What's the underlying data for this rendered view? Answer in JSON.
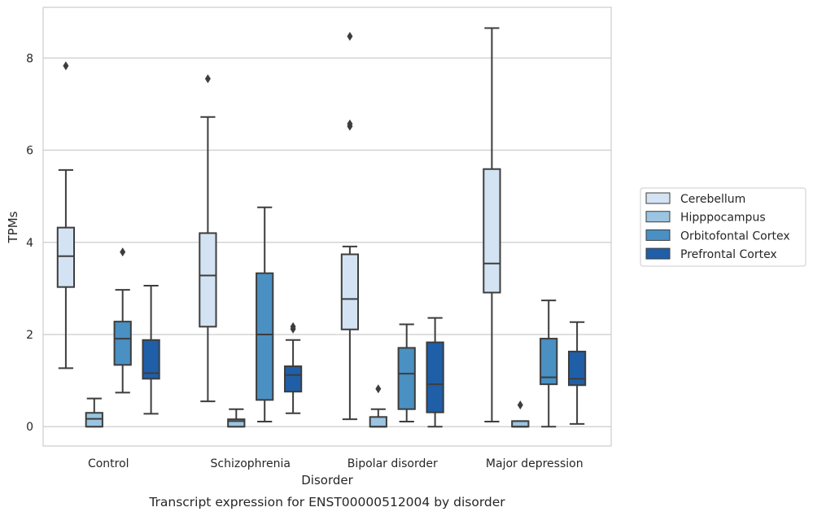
{
  "chart_data": {
    "type": "box",
    "caption": "Transcript expression for ENST00000512004 by disorder",
    "xlabel": "Disorder",
    "ylabel": "TPMs",
    "ylim": [
      -0.42,
      9.1
    ],
    "yticks": [
      0,
      2,
      4,
      6,
      8
    ],
    "grid": "horizontal",
    "legend_position": "right",
    "categories": [
      "Control",
      "Schizophrenia",
      "Bipolar disorder",
      "Major depression"
    ],
    "series": [
      {
        "name": "Cerebellum",
        "color": "#d3e3f3",
        "boxes": [
          {
            "whislo": 1.27,
            "q1": 3.03,
            "med": 3.7,
            "q3": 4.32,
            "whishi": 5.57,
            "fliers": [
              7.83
            ]
          },
          {
            "whislo": 0.55,
            "q1": 2.17,
            "med": 3.28,
            "q3": 4.2,
            "whishi": 6.72,
            "fliers": [
              7.55
            ]
          },
          {
            "whislo": 0.16,
            "q1": 2.11,
            "med": 2.77,
            "q3": 3.74,
            "whishi": 3.91,
            "fliers": [
              6.52,
              6.57,
              8.47
            ]
          },
          {
            "whislo": 0.11,
            "q1": 2.91,
            "med": 3.54,
            "q3": 5.59,
            "whishi": 8.65,
            "fliers": []
          }
        ]
      },
      {
        "name": "Hipppocampus",
        "color": "#9ac4df",
        "boxes": [
          {
            "whislo": 0.0,
            "q1": 0.0,
            "med": 0.17,
            "q3": 0.3,
            "whishi": 0.61,
            "fliers": []
          },
          {
            "whislo": 0.0,
            "q1": 0.0,
            "med": 0.12,
            "q3": 0.16,
            "whishi": 0.38,
            "fliers": []
          },
          {
            "whislo": 0.0,
            "q1": 0.0,
            "med": 0.0,
            "q3": 0.21,
            "whishi": 0.38,
            "fliers": [
              0.82
            ]
          },
          {
            "whislo": 0.0,
            "q1": 0.0,
            "med": 0.0,
            "q3": 0.12,
            "whishi": 0.12,
            "fliers": [
              0.47
            ]
          }
        ]
      },
      {
        "name": "Orbitofontal Cortex",
        "color": "#4a90c3",
        "boxes": [
          {
            "whislo": 0.74,
            "q1": 1.34,
            "med": 1.91,
            "q3": 2.28,
            "whishi": 2.97,
            "fliers": [
              3.79
            ]
          },
          {
            "whislo": 0.11,
            "q1": 0.58,
            "med": 2.0,
            "q3": 3.33,
            "whishi": 4.76,
            "fliers": []
          },
          {
            "whislo": 0.11,
            "q1": 0.38,
            "med": 1.15,
            "q3": 1.71,
            "whishi": 2.22,
            "fliers": []
          },
          {
            "whislo": 0.0,
            "q1": 0.92,
            "med": 1.07,
            "q3": 1.91,
            "whishi": 2.74,
            "fliers": []
          }
        ]
      },
      {
        "name": "Prefrontal Cortex",
        "color": "#1f5fa8",
        "boxes": [
          {
            "whislo": 0.28,
            "q1": 1.04,
            "med": 1.16,
            "q3": 1.88,
            "whishi": 3.06,
            "fliers": []
          },
          {
            "whislo": 0.29,
            "q1": 0.76,
            "med": 1.12,
            "q3": 1.31,
            "whishi": 1.88,
            "fliers": [
              2.12,
              2.17
            ]
          },
          {
            "whislo": 0.0,
            "q1": 0.31,
            "med": 0.92,
            "q3": 1.83,
            "whishi": 2.36,
            "fliers": []
          },
          {
            "whislo": 0.06,
            "q1": 0.9,
            "med": 1.04,
            "q3": 1.63,
            "whishi": 2.27,
            "fliers": []
          }
        ]
      }
    ]
  }
}
